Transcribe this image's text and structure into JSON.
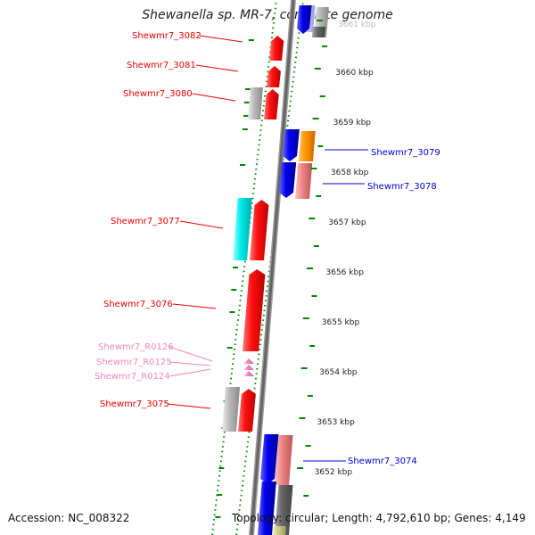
{
  "title": "Shewanella sp. MR-7, complete genome",
  "footer": {
    "accession": "Accession: NC_008322",
    "topology": "Topology: circular; Length: 4,792,610 bp; Genes: 4,149"
  },
  "axis": {
    "unit": "kbp",
    "ticks": [
      {
        "kbp": 3661,
        "label": "3661 kbp",
        "faded": true
      },
      {
        "kbp": 3660,
        "label": "3660 kbp"
      },
      {
        "kbp": 3659,
        "label": "3659 kbp"
      },
      {
        "kbp": 3658,
        "label": "3658 kbp"
      },
      {
        "kbp": 3657,
        "label": "3657 kbp"
      },
      {
        "kbp": 3656,
        "label": "3656 kbp"
      },
      {
        "kbp": 3655,
        "label": "3655 kbp"
      },
      {
        "kbp": 3654,
        "label": "3654 kbp"
      },
      {
        "kbp": 3653,
        "label": "3653 kbp"
      },
      {
        "kbp": 3652,
        "label": "3652 kbp"
      }
    ]
  },
  "genes": [
    {
      "label": "Shewmr7_3082",
      "strand": "+",
      "color": "#ee0000"
    },
    {
      "label": "Shewmr7_3081",
      "strand": "+",
      "color": "#ee0000"
    },
    {
      "label": "Shewmr7_3080",
      "strand": "+",
      "color": "#ee0000"
    },
    {
      "label": "Shewmr7_3079",
      "strand": "-",
      "color": "#0000dd"
    },
    {
      "label": "Shewmr7_3078",
      "strand": "-",
      "color": "#0000dd"
    },
    {
      "label": "Shewmr7_3077",
      "strand": "+",
      "color": "#ee0000"
    },
    {
      "label": "Shewmr7_3076",
      "strand": "+",
      "color": "#ee0000"
    },
    {
      "label": "Shewmr7_R0126",
      "strand": "+",
      "color": "#ee88bb"
    },
    {
      "label": "Shewmr7_R0125",
      "strand": "+",
      "color": "#ee88bb"
    },
    {
      "label": "Shewmr7_R0124",
      "strand": "+",
      "color": "#ee88bb"
    },
    {
      "label": "Shewmr7_3075",
      "strand": "+",
      "color": "#ee0000"
    },
    {
      "label": "Shewmr7_3074",
      "strand": "-",
      "color": "#0000dd"
    }
  ],
  "colors": {
    "plus_strand_gene": "#ee0000",
    "minus_strand_gene": "#0000dd",
    "rna_gene": "#ee88bb",
    "backbone": "#777777",
    "gc_skew_dots": "#008800",
    "ruler_dots": "#008800"
  }
}
